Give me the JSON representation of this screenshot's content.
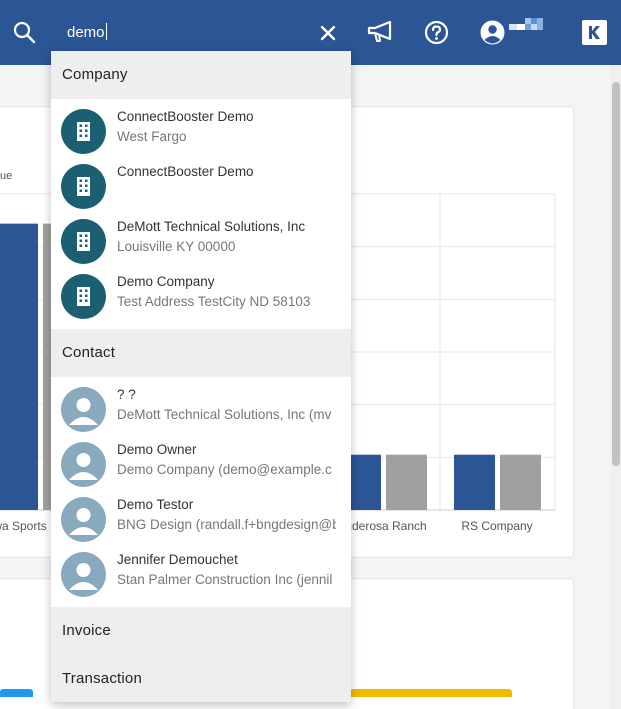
{
  "header": {
    "search_value": "demo",
    "icons": {
      "search": "search-icon",
      "clear": "close-icon",
      "announcements": "megaphone-icon",
      "help": "help-icon",
      "account": "user-circle-icon",
      "brand": "brand-logo"
    },
    "colors": {
      "bar": "#2b5594"
    }
  },
  "dropdown": {
    "sections": {
      "company": "Company",
      "contact": "Contact",
      "invoice": "Invoice",
      "transaction": "Transaction"
    },
    "companies": [
      {
        "name": "ConnectBooster Demo",
        "sub": "West Fargo"
      },
      {
        "name": "ConnectBooster Demo",
        "sub": ""
      },
      {
        "name": "DeMott Technical Solutions, Inc",
        "sub": "Louisville KY 00000"
      },
      {
        "name": "Demo Company",
        "sub": "Test Address TestCity ND 58103"
      }
    ],
    "contacts": [
      {
        "name": "? ?",
        "sub": "DeMott Technical Solutions, Inc (mv"
      },
      {
        "name": "Demo Owner",
        "sub": "Demo Company (demo@example.c"
      },
      {
        "name": "Demo Testor",
        "sub": "BNG Design (randall.f+bngdesign@b"
      },
      {
        "name": "Jennifer Demouchet",
        "sub": "Stan Palmer Construction Inc (jennil"
      }
    ],
    "colors": {
      "company_avatar": "#1c5e72",
      "contact_avatar": "#88aabf"
    }
  },
  "background": {
    "legend_fragment": "ue",
    "chart_data": {
      "type": "bar",
      "categories": [
        "wa Sports",
        "nderosa Ranch",
        "RS Company"
      ],
      "series": [
        {
          "values": [
            290,
            56,
            56
          ]
        },
        {
          "values": [
            290,
            56,
            56
          ]
        }
      ],
      "colors": [
        "#2b5594",
        "#a0a0a0"
      ],
      "ylim": [
        0,
        320
      ],
      "grid": true
    },
    "strip_colors": [
      "#2196f3",
      "#f5b800"
    ]
  }
}
